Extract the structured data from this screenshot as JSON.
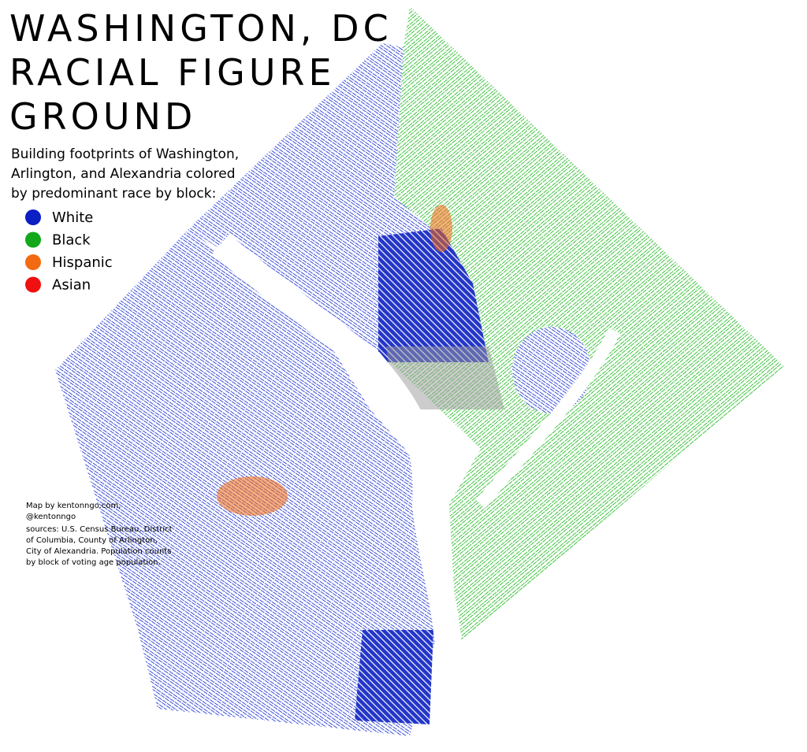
{
  "title": [
    "WASHINGTON, DC",
    "RACIAL FIGURE",
    "GROUND"
  ],
  "subtitle": [
    "Building footprints of Washington,",
    "Arlington, and Alexandria colored",
    "by predominant race by block:"
  ],
  "legend": [
    {
      "label": "White",
      "color": "#0a1fc4"
    },
    {
      "label": "Black",
      "color": "#12a81a"
    },
    {
      "label": "Hispanic",
      "color": "#f26a12"
    },
    {
      "label": "Asian",
      "color": "#f01010"
    }
  ],
  "credit": [
    "Map by kentonngo.com,",
    "@kentonngo"
  ],
  "sources": [
    "sources: U.S. Census Bureau, District",
    "of Columbia, County of Arlington,",
    "City of Alexandria. Population counts",
    "by block of voting age population."
  ]
}
